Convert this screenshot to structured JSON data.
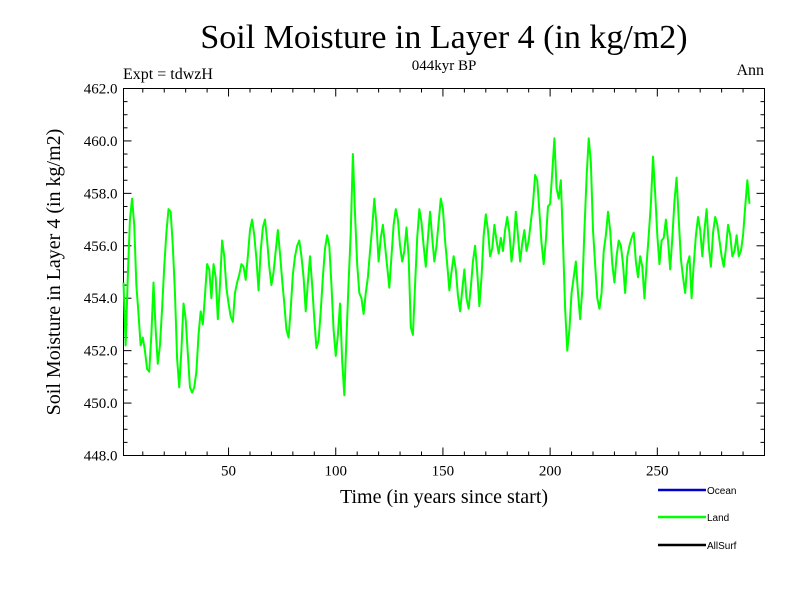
{
  "chart_data": {
    "type": "line",
    "title": "Soil Moisture in Layer 4 (in kg/m2)",
    "subtitle": "044kyr BP",
    "left_label": "Expt = tdwzH",
    "right_label": "Ann",
    "xlabel": "Time (in years since start)",
    "ylabel": "Soil Moisture in Layer 4 (in kg/m2)",
    "xlim": [
      1,
      300
    ],
    "ylim": [
      448,
      462
    ],
    "xticks": [
      50,
      100,
      150,
      200,
      250
    ],
    "xtick_labels": [
      "50",
      "100",
      "150",
      "200",
      "250"
    ],
    "yticks": [
      448,
      450,
      452,
      454,
      456,
      458,
      460,
      462
    ],
    "ytick_labels": [
      "448.0",
      "450.0",
      "452.0",
      "454.0",
      "456.0",
      "458.0",
      "460.0",
      "462.0"
    ],
    "grid": false,
    "legend_position": "bottom-right",
    "legend": [
      {
        "name": "Ocean",
        "color": "#0000cc"
      },
      {
        "name": "Land",
        "color": "#00ff00"
      },
      {
        "name": "AllSurf",
        "color": "#000000"
      }
    ],
    "series": [
      {
        "name": "Land",
        "color": "#00ff00",
        "x_start": 1,
        "x_step": 1,
        "values": [
          454.6,
          452.2,
          454.8,
          457.0,
          457.8,
          456.8,
          454.5,
          453.4,
          452.2,
          452.5,
          452.0,
          451.3,
          451.2,
          452.6,
          454.6,
          452.8,
          451.5,
          452.2,
          453.6,
          455.2,
          456.5,
          457.4,
          457.3,
          456.0,
          454.2,
          451.7,
          450.6,
          452.0,
          453.8,
          453.2,
          451.9,
          450.6,
          450.4,
          450.6,
          451.2,
          452.6,
          453.5,
          453.0,
          454.1,
          455.3,
          455.1,
          454.0,
          455.3,
          454.8,
          453.2,
          454.5,
          456.2,
          455.6,
          454.4,
          453.8,
          453.3,
          453.1,
          454.2,
          454.6,
          454.9,
          455.3,
          455.2,
          454.7,
          455.6,
          456.6,
          457.0,
          456.4,
          455.5,
          454.3,
          455.8,
          456.7,
          457.0,
          456.2,
          455.2,
          454.5,
          455.0,
          455.8,
          456.6,
          455.7,
          454.7,
          453.8,
          452.8,
          452.5,
          453.6,
          454.9,
          455.6,
          456.0,
          456.2,
          455.6,
          454.8,
          453.5,
          454.6,
          455.6,
          454.5,
          453.2,
          452.1,
          452.4,
          453.5,
          454.8,
          455.9,
          456.4,
          456.0,
          454.5,
          452.8,
          451.8,
          452.6,
          453.8,
          451.6,
          450.3,
          452.5,
          454.6,
          456.5,
          459.5,
          457.2,
          455.3,
          454.2,
          454.0,
          453.4,
          454.2,
          454.8,
          455.8,
          456.7,
          457.8,
          456.8,
          455.4,
          456.3,
          456.8,
          456.0,
          455.2,
          454.4,
          455.6,
          456.8,
          457.4,
          457.0,
          456.0,
          455.4,
          455.8,
          456.7,
          455.6,
          452.9,
          452.6,
          454.5,
          456.3,
          457.4,
          456.9,
          456.0,
          455.2,
          456.3,
          457.3,
          456.3,
          455.4,
          456.0,
          456.9,
          457.8,
          457.4,
          456.2,
          455.3,
          454.3,
          455.0,
          455.6,
          455.1,
          454.1,
          453.5,
          454.3,
          455.1,
          454.0,
          453.6,
          454.4,
          455.4,
          456.0,
          455.0,
          453.7,
          454.8,
          456.4,
          457.2,
          456.6,
          455.6,
          455.9,
          456.8,
          456.2,
          455.7,
          456.3,
          455.8,
          456.6,
          457.1,
          456.5,
          455.4,
          456.1,
          457.3,
          456.4,
          455.4,
          456.1,
          456.6,
          455.8,
          456.2,
          456.9,
          457.6,
          458.7,
          458.5,
          457.3,
          456.1,
          455.3,
          456.2,
          457.5,
          457.6,
          458.8,
          460.1,
          458.2,
          457.8,
          458.5,
          456.2,
          453.6,
          452.0,
          452.8,
          454.2,
          454.8,
          455.4,
          454.2,
          453.2,
          454.3,
          456.6,
          458.6,
          460.1,
          459.2,
          456.6,
          455.3,
          454.0,
          453.6,
          454.2,
          455.8,
          456.4,
          457.3,
          456.6,
          455.3,
          454.6,
          455.6,
          456.2,
          456.0,
          455.3,
          454.2,
          455.6,
          456.0,
          456.3,
          456.5,
          455.4,
          454.8,
          455.6,
          455.2,
          454.0,
          455.3,
          456.4,
          457.6,
          459.4,
          458.0,
          456.4,
          455.3,
          456.2,
          456.3,
          457.0,
          456.2,
          455.1,
          456.3,
          457.7,
          458.6,
          457.0,
          455.5,
          454.8,
          454.2,
          455.3,
          455.6,
          454.0,
          455.3,
          456.4,
          457.1,
          456.6,
          455.6,
          456.6,
          457.4,
          456.0,
          455.2,
          456.5,
          457.1,
          456.8,
          456.2,
          455.6,
          455.2,
          455.9,
          456.8,
          456.4,
          455.6,
          455.8,
          456.4,
          455.6,
          455.8,
          456.4,
          457.5,
          458.5,
          457.6
        ]
      }
    ]
  }
}
